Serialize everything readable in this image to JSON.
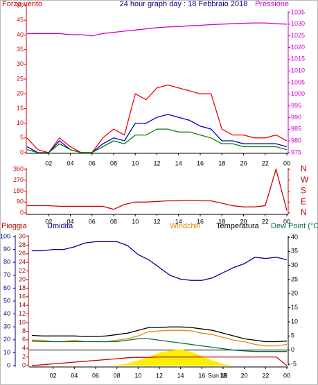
{
  "chart_data": [
    {
      "type": "line",
      "title": "24 hour graph day : 18 Febbraio 2018",
      "y_label": "Forza vento",
      "y2_label": "Pressione",
      "x": [
        0,
        1,
        2,
        3,
        4,
        5,
        6,
        7,
        8,
        9,
        10,
        11,
        12,
        13,
        14,
        15,
        16,
        17,
        18,
        19,
        20,
        21,
        22,
        23,
        24
      ],
      "xlim": [
        0,
        24
      ],
      "xticks": [
        {
          "value": 2,
          "label": "02"
        },
        {
          "value": 4,
          "label": "04"
        },
        {
          "value": 6,
          "label": "06"
        },
        {
          "value": 8,
          "label": "08"
        },
        10,
        12,
        14,
        16,
        18,
        20,
        22,
        {
          "value": 24,
          "label": "00"
        }
      ],
      "ylim": [
        0,
        50
      ],
      "yticks": [
        0,
        5,
        10,
        15,
        20,
        25,
        30,
        35,
        40,
        45,
        50
      ],
      "ycolor": "#cc0000",
      "y2lim": [
        975,
        1035
      ],
      "y2ticks": [
        975,
        980,
        985,
        990,
        995,
        1000,
        1005,
        1010,
        1015,
        1020,
        1025,
        1030,
        1035
      ],
      "y2color": "#cc00cc",
      "series": [
        {
          "color": "#ff0000",
          "values": [
            5,
            1,
            0,
            5,
            2,
            0,
            0,
            5,
            8,
            6,
            20,
            18,
            22,
            23,
            22,
            21,
            20,
            20,
            8,
            6,
            6,
            5,
            5,
            6,
            4
          ]
        },
        {
          "color": "#0000cc",
          "values": [
            2,
            0,
            0,
            4,
            1,
            0,
            0,
            3,
            5,
            4,
            10,
            10,
            12,
            13,
            12,
            11,
            9,
            8,
            4,
            4,
            3,
            3,
            3,
            3,
            2
          ]
        },
        {
          "color": "#008000",
          "values": [
            1,
            0,
            0,
            3,
            1,
            0,
            0,
            2,
            4,
            3,
            6,
            6,
            8,
            8,
            7,
            7,
            6,
            5,
            3,
            3,
            2,
            2,
            2,
            2,
            1
          ]
        },
        {
          "color": "#cc00cc",
          "axis": "y2",
          "values": [
            1026,
            1026,
            1026,
            1026,
            1025.5,
            1025.5,
            1025,
            1026,
            1026.5,
            1027,
            1027.5,
            1028,
            1028.5,
            1028.8,
            1029,
            1029.3,
            1029.5,
            1029.8,
            1030,
            1030.2,
            1030.4,
            1030.5,
            1030.5,
            1030.2,
            1030
          ]
        }
      ]
    },
    {
      "type": "line",
      "x": [
        0,
        1,
        2,
        3,
        4,
        5,
        6,
        7,
        8,
        9,
        10,
        11,
        12,
        13,
        14,
        15,
        16,
        17,
        18,
        19,
        20,
        21,
        22,
        23,
        24
      ],
      "xlim": [
        0,
        24
      ],
      "xticks": [
        {
          "value": 2,
          "label": "02"
        },
        {
          "value": 4,
          "label": "04"
        },
        {
          "value": 6,
          "label": "06"
        },
        {
          "value": 8,
          "label": "08"
        },
        10,
        12,
        14,
        16,
        18,
        20,
        22,
        {
          "value": 24,
          "label": "00"
        }
      ],
      "ylim": [
        0,
        360
      ],
      "yticks": [
        0,
        90,
        180,
        270,
        360
      ],
      "ycolor": "#cc0000",
      "y2lim": [
        0,
        360
      ],
      "y2ticks": [
        {
          "value": 0,
          "label": "N"
        },
        {
          "value": 90,
          "label": "E"
        },
        {
          "value": 180,
          "label": "S"
        },
        {
          "value": 270,
          "label": "W"
        },
        {
          "value": 360,
          "label": "N"
        }
      ],
      "y2color": "#cc0000",
      "series": [
        {
          "color": "#cc0000",
          "values": [
            60,
            60,
            60,
            55,
            55,
            55,
            55,
            55,
            30,
            70,
            90,
            90,
            95,
            100,
            100,
            105,
            100,
            100,
            80,
            60,
            50,
            50,
            60,
            360,
            20
          ]
        }
      ]
    },
    {
      "type": "line",
      "annotation": "Sun 18",
      "x": [
        0,
        1,
        2,
        3,
        4,
        5,
        6,
        7,
        8,
        9,
        10,
        11,
        12,
        13,
        14,
        15,
        16,
        17,
        18,
        19,
        20,
        21,
        22,
        23,
        24
      ],
      "xlim": [
        0,
        24
      ],
      "xticks": [
        {
          "value": 2,
          "label": "02"
        },
        {
          "value": 4,
          "label": "04"
        },
        {
          "value": 6,
          "label": "06"
        },
        {
          "value": 8,
          "label": "08"
        },
        10,
        12,
        14,
        16,
        18,
        20,
        22,
        {
          "value": 24,
          "label": "00"
        }
      ],
      "ylim": [
        0,
        100
      ],
      "yticks": [
        0,
        10,
        20,
        30,
        40,
        50,
        60,
        70,
        80,
        90,
        100
      ],
      "ycolor": "#000080",
      "y3lim": [
        0,
        30
      ],
      "y3ticks": [
        0,
        2,
        4,
        6,
        8,
        10,
        12,
        14,
        16,
        18,
        20,
        22,
        24,
        26,
        28,
        30
      ],
      "y3color": "#aa0000",
      "y2lim": [
        -5,
        40
      ],
      "y2ticks": [
        -5,
        0,
        5,
        10,
        15,
        20,
        25,
        30,
        35,
        40
      ],
      "y2color": "#000000",
      "zero_line": true,
      "series": [
        {
          "color": "#ffee00",
          "type": "area",
          "axis": "y3",
          "values": [
            0,
            0,
            0,
            0,
            0,
            0,
            0,
            0,
            0.1,
            0.5,
            1.2,
            2,
            3,
            3.5,
            3.8,
            3.2,
            2.2,
            1.2,
            0.4,
            0,
            0,
            0,
            0,
            0,
            0
          ]
        },
        {
          "name": "Pioggia",
          "color": "#cc0000",
          "axis": "y3",
          "values": [
            0,
            0.2,
            0.4,
            0.6,
            0.8,
            1,
            1.2,
            1.4,
            1.6,
            1.8,
            1.9,
            1.9,
            2,
            2,
            2,
            2,
            2,
            2,
            2,
            2,
            2,
            2,
            2,
            2,
            0
          ]
        },
        {
          "name": "Umidita",
          "color": "#000099",
          "values": [
            89,
            89,
            90,
            90,
            92,
            95,
            96,
            96,
            96,
            93,
            86,
            82,
            76,
            70,
            67,
            66,
            66,
            68,
            72,
            76,
            79,
            84,
            83,
            84,
            82
          ]
        },
        {
          "name": "Windchill",
          "color": "#dd8800",
          "axis": "y2",
          "values": [
            3.5,
            3.5,
            3,
            3,
            3.5,
            3,
            3,
            3,
            3.5,
            4,
            5,
            6.5,
            6.8,
            7,
            7,
            6.8,
            6,
            5.5,
            4.5,
            3.5,
            3,
            2,
            1.5,
            1.5,
            2
          ]
        },
        {
          "name": "Temperatura",
          "color": "#000000",
          "axis": "y2",
          "values": [
            5.2,
            5,
            5,
            5,
            5,
            4.8,
            4.8,
            5,
            5.5,
            6,
            7,
            8,
            8,
            8.2,
            8.2,
            8,
            7.5,
            7,
            6,
            5,
            4,
            3.5,
            3,
            3,
            3.2
          ]
        },
        {
          "name": "Dew Point (°C",
          "color": "#007040",
          "axis": "y2",
          "values": [
            3.2,
            3,
            3,
            3,
            3,
            3,
            3,
            3,
            3,
            3.5,
            4,
            4,
            3.5,
            3,
            2.5,
            2,
            1.5,
            1,
            0.5,
            0,
            -0.3,
            -0.5,
            -0.5,
            -0.5,
            -0.5
          ]
        }
      ]
    }
  ]
}
